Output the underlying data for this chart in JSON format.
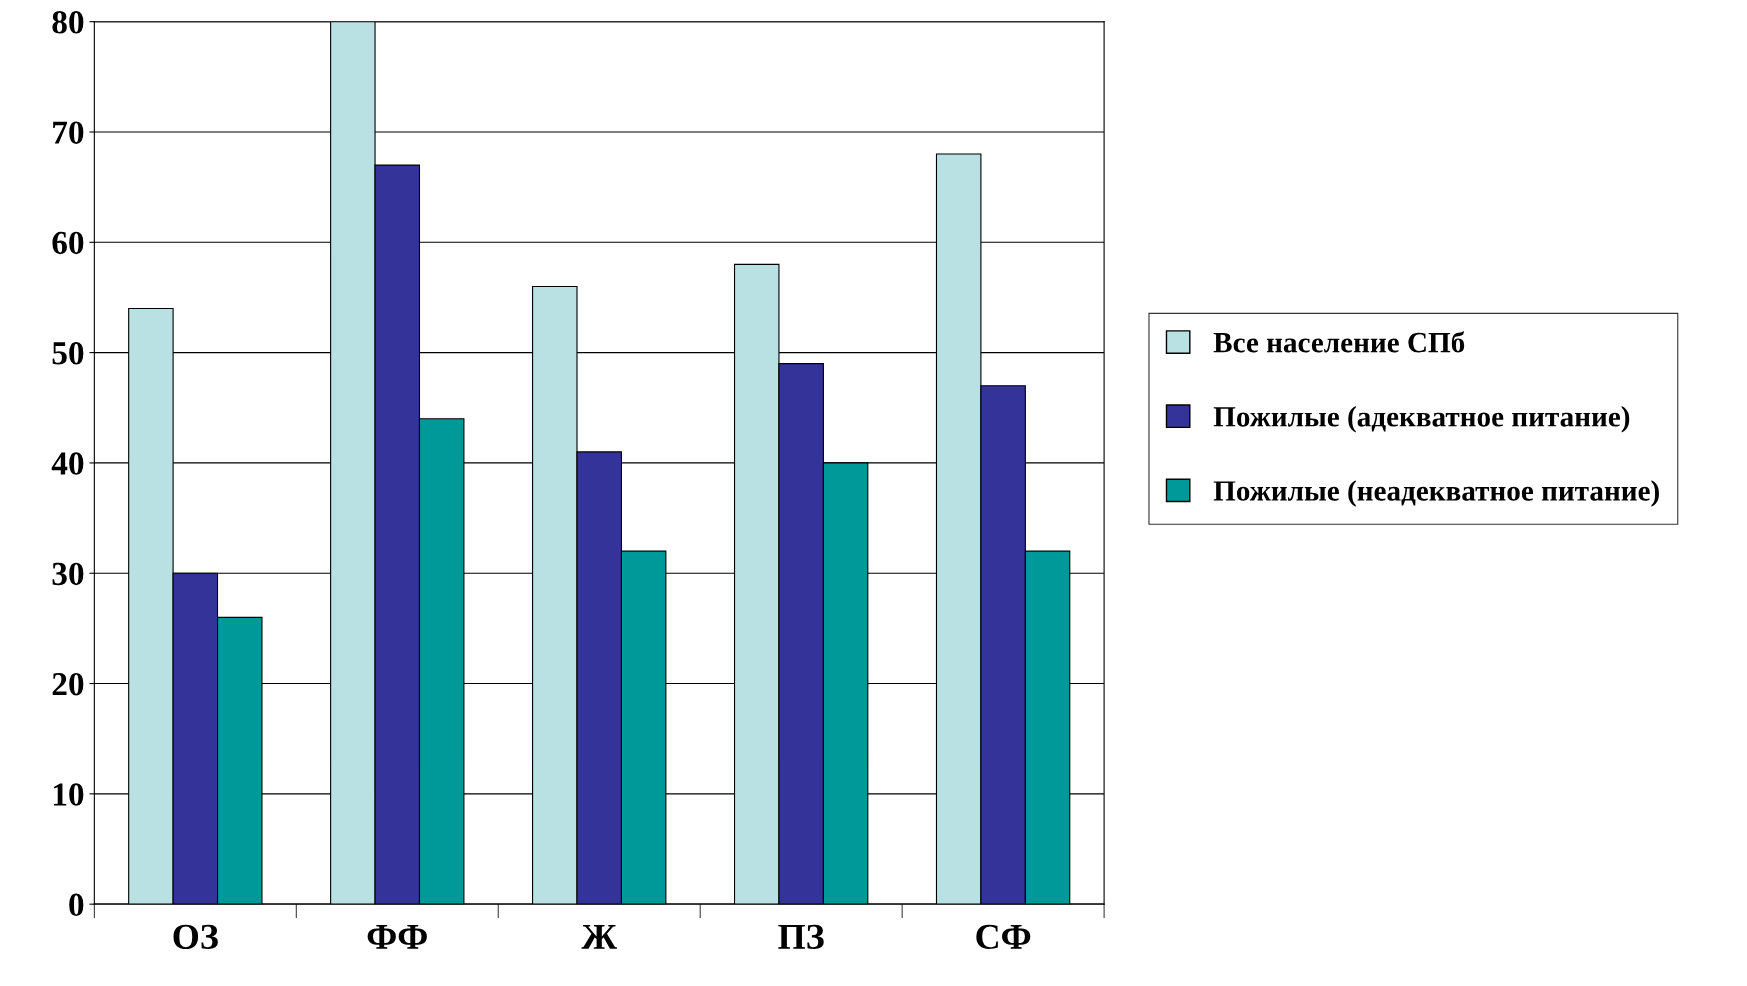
{
  "chart_data": {
    "type": "bar",
    "categories": [
      "ОЗ",
      "ФФ",
      "Ж",
      "ПЗ",
      "СФ"
    ],
    "series": [
      {
        "name": "Все население СПб",
        "color": "#b9e0e3",
        "values": [
          54,
          80,
          56,
          58,
          68
        ]
      },
      {
        "name": "Пожилые (адекватное питание)",
        "color": "#333399",
        "values": [
          30,
          67,
          41,
          49,
          47
        ]
      },
      {
        "name": "Пожилые (неадекватное питание)",
        "color": "#009999",
        "values": [
          26,
          44,
          32,
          40,
          32
        ]
      }
    ],
    "ylim": [
      0,
      80
    ],
    "yticks": [
      0,
      10,
      20,
      30,
      40,
      50,
      60,
      70,
      80
    ],
    "grid": "y",
    "legend": "right"
  }
}
